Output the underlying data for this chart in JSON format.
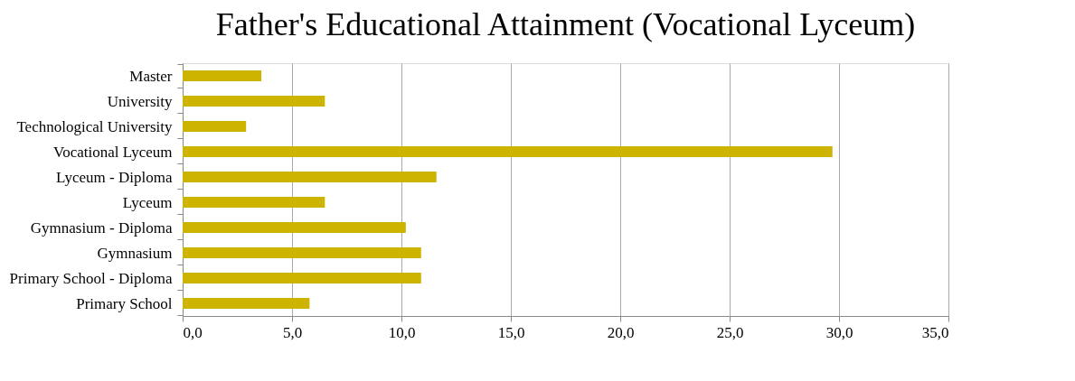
{
  "chart_data": {
    "type": "bar",
    "orientation": "horizontal",
    "title": "Father's Educational Attainment (Vocational Lyceum)",
    "categories": [
      "Master ",
      "University",
      "Technological University",
      "Vocational Lyceum",
      "Lyceum - Diploma",
      "Lyceum",
      "Gymnasium - Diploma",
      "Gymnasium",
      "Primary School - Diploma",
      "Primary School"
    ],
    "values": [
      3.6,
      6.5,
      2.9,
      29.7,
      11.6,
      6.5,
      10.2,
      10.9,
      10.9,
      5.8
    ],
    "color": "#cdb400",
    "xlim": [
      0,
      35
    ],
    "xticks": [
      {
        "value": 0,
        "label": "0,0"
      },
      {
        "value": 5,
        "label": "5,0"
      },
      {
        "value": 10,
        "label": "10,0"
      },
      {
        "value": 15,
        "label": "15,0"
      },
      {
        "value": 20,
        "label": "20,0"
      },
      {
        "value": 25,
        "label": "25,0"
      },
      {
        "value": 30,
        "label": "30,0"
      },
      {
        "value": 35,
        "label": "35,0"
      }
    ],
    "grid": "x"
  }
}
